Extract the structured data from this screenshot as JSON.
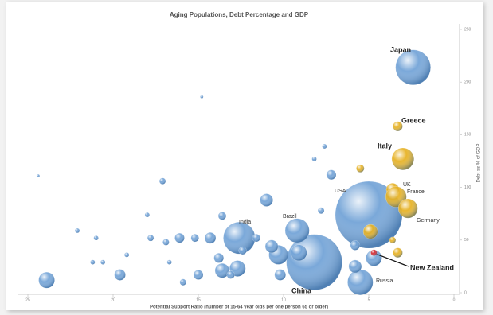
{
  "chart_data": {
    "type": "bubble",
    "title": "Aging Populations, Debt Percentage and GDP",
    "x_label": "Potential Support Ratio (number of 15-64 year olds per one person 65 or older)",
    "y_label": "Debt as % of GDP",
    "xlim": [
      25,
      0
    ],
    "xticks": [
      25,
      20,
      15,
      10,
      5,
      0
    ],
    "ylim": [
      0,
      250
    ],
    "yticks": [
      0,
      50,
      100,
      150,
      200,
      250
    ],
    "series": [
      {
        "color": "#6fa1d6",
        "x": [
          2.4,
          5.0,
          8.2,
          12.6,
          9.2,
          5.5,
          23.9,
          19.6,
          17.1,
          16.1,
          14.3,
          13.6,
          11.0,
          7.2,
          7.8,
          10.3,
          9.1,
          12.7,
          13.6,
          13.8,
          10.7,
          10.2,
          15.2,
          4.7,
          5.8,
          5.8,
          15.0,
          15.9,
          17.8,
          16.9,
          21.0,
          22.1,
          20.6,
          18.0,
          19.2,
          16.7,
          8.2,
          7.6,
          14.8,
          24.4,
          13.1,
          12.4,
          11.6,
          21.2
        ],
        "values": [
          214,
          74,
          29,
          52,
          59,
          10,
          12,
          17,
          106,
          52,
          52,
          73,
          88,
          112,
          78,
          36,
          38,
          23,
          21,
          33,
          44,
          17,
          52,
          33,
          25,
          45,
          17,
          10,
          52,
          48,
          52,
          59,
          29,
          74,
          36,
          29,
          127,
          139,
          186,
          111,
          17,
          40,
          52,
          29
        ],
        "sizes": [
          4.0,
          14.6,
          10.1,
          3.3,
          1.9,
          2.1,
          0.83,
          0.4,
          0.13,
          0.3,
          0.4,
          0.2,
          0.53,
          0.3,
          0.13,
          1.2,
          0.83,
          0.83,
          0.67,
          0.3,
          0.53,
          0.4,
          0.2,
          0.83,
          0.53,
          0.3,
          0.3,
          0.13,
          0.13,
          0.13,
          0.07,
          0.07,
          0.07,
          0.07,
          0.07,
          0.07,
          0.07,
          0.07,
          0.03,
          0.03,
          0.2,
          0.2,
          0.2,
          0.07
        ]
      },
      {
        "color": "#e6b01e",
        "x": [
          3.3,
          3.0,
          3.6,
          3.4,
          2.7,
          5.5,
          4.9,
          3.3,
          3.6
        ],
        "values": [
          158,
          127,
          98,
          91,
          80,
          118,
          58,
          38,
          50
        ],
        "sizes": [
          0.3,
          1.6,
          0.53,
          1.4,
          1.2,
          0.2,
          0.67,
          0.3,
          0.13
        ]
      },
      {
        "color": "#d9262a",
        "x": [
          4.7
        ],
        "values": [
          38
        ],
        "sizes": [
          0.13
        ]
      }
    ],
    "annotations": [
      "Japan",
      "Greece",
      "Italy",
      "UK",
      "France",
      "USA",
      "Germany",
      "India",
      "Brazil",
      "China",
      "New Zealand",
      "Russia"
    ]
  }
}
